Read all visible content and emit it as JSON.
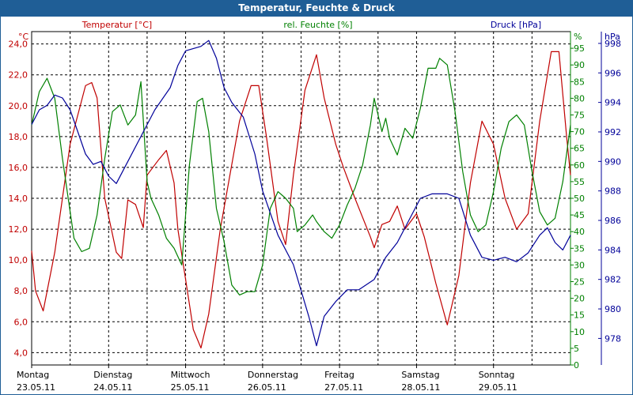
{
  "title": "Temperatur, Feuchte & Druck",
  "colors": {
    "temperature": "#c00000",
    "humidity": "#008000",
    "pressure": "#000099",
    "title_bg": "#1f5e96",
    "grid": "#000000"
  },
  "chart_data": {
    "type": "line",
    "title": "Temperatur, Feuchte & Druck",
    "x_range": [
      0,
      7
    ],
    "x_ticks": [
      {
        "day": "Montag",
        "date": "23.05.11"
      },
      {
        "day": "Dienstag",
        "date": "24.05.11"
      },
      {
        "day": "Mittwoch",
        "date": "25.05.11"
      },
      {
        "day": "Donnerstag",
        "date": "26.05.11"
      },
      {
        "day": "Freitag",
        "date": "27.05.11"
      },
      {
        "day": "Samstag",
        "date": "28.05.11"
      },
      {
        "day": "Sonntag",
        "date": "29.05.11"
      }
    ],
    "axes": {
      "temperature": {
        "label": "Temperatur [°C]",
        "unit": "°C",
        "range": [
          3.2,
          24.8
        ],
        "ticks": [
          "4,0",
          "6,0",
          "8,0",
          "10,0",
          "12,0",
          "14,0",
          "16,0",
          "18,0",
          "20,0",
          "22,0",
          "24,0"
        ]
      },
      "humidity": {
        "label": "rel. Feuchte [%]",
        "unit": "%",
        "range": [
          0,
          100
        ],
        "ticks": [
          "0",
          "5",
          "10",
          "15",
          "20",
          "25",
          "30",
          "35",
          "40",
          "45",
          "50",
          "55",
          "60",
          "65",
          "70",
          "75",
          "80",
          "85",
          "90",
          "95"
        ]
      },
      "pressure": {
        "label": "Druck [hPa]",
        "unit": "hPa",
        "range": [
          976.2,
          998.8
        ],
        "ticks": [
          "978",
          "980",
          "982",
          "984",
          "986",
          "988",
          "990",
          "992",
          "994",
          "996",
          "998"
        ]
      }
    },
    "series": [
      {
        "name": "Temperatur",
        "axis": "temperature",
        "points": [
          [
            0,
            10.6
          ],
          [
            0.05,
            8.0
          ],
          [
            0.15,
            6.7
          ],
          [
            0.3,
            10.5
          ],
          [
            0.5,
            17.5
          ],
          [
            0.7,
            21.3
          ],
          [
            0.78,
            21.5
          ],
          [
            0.85,
            20.5
          ],
          [
            0.95,
            14.0
          ],
          [
            1.1,
            10.5
          ],
          [
            1.17,
            10.1
          ],
          [
            1.25,
            13.9
          ],
          [
            1.35,
            13.6
          ],
          [
            1.45,
            12.1
          ],
          [
            1.5,
            15.5
          ],
          [
            1.65,
            16.5
          ],
          [
            1.75,
            17.1
          ],
          [
            1.85,
            15.0
          ],
          [
            1.9,
            12.0
          ],
          [
            2.1,
            5.5
          ],
          [
            2.2,
            4.3
          ],
          [
            2.3,
            6.5
          ],
          [
            2.45,
            12.0
          ],
          [
            2.7,
            19.0
          ],
          [
            2.85,
            21.3
          ],
          [
            2.95,
            21.3
          ],
          [
            3.05,
            18.0
          ],
          [
            3.2,
            12.5
          ],
          [
            3.3,
            11.0
          ],
          [
            3.4,
            15.5
          ],
          [
            3.55,
            21.0
          ],
          [
            3.7,
            23.3
          ],
          [
            3.8,
            20.5
          ],
          [
            3.95,
            17.5
          ],
          [
            4.05,
            16.0
          ],
          [
            4.2,
            14.0
          ],
          [
            4.4,
            11.5
          ],
          [
            4.45,
            10.8
          ],
          [
            4.55,
            12.3
          ],
          [
            4.65,
            12.5
          ],
          [
            4.75,
            13.5
          ],
          [
            4.85,
            12.0
          ],
          [
            5.0,
            13.0
          ],
          [
            5.1,
            11.5
          ],
          [
            5.25,
            8.5
          ],
          [
            5.4,
            5.8
          ],
          [
            5.55,
            9.0
          ],
          [
            5.7,
            15.0
          ],
          [
            5.85,
            19.0
          ],
          [
            6.0,
            17.5
          ],
          [
            6.15,
            14.0
          ],
          [
            6.3,
            12.0
          ],
          [
            6.45,
            13.0
          ],
          [
            6.6,
            19.0
          ],
          [
            6.75,
            23.5
          ],
          [
            6.85,
            23.5
          ],
          [
            6.95,
            18.0
          ],
          [
            7.0,
            15.5
          ]
        ]
      },
      {
        "name": "rel. Feuchte",
        "axis": "humidity",
        "points": [
          [
            0,
            72
          ],
          [
            0.1,
            82
          ],
          [
            0.2,
            86
          ],
          [
            0.3,
            80
          ],
          [
            0.4,
            62
          ],
          [
            0.55,
            38
          ],
          [
            0.65,
            34
          ],
          [
            0.75,
            35
          ],
          [
            0.85,
            45
          ],
          [
            0.95,
            62
          ],
          [
            1.05,
            76
          ],
          [
            1.15,
            78
          ],
          [
            1.25,
            72
          ],
          [
            1.35,
            75
          ],
          [
            1.42,
            85
          ],
          [
            1.5,
            55
          ],
          [
            1.55,
            50
          ],
          [
            1.65,
            45
          ],
          [
            1.75,
            38
          ],
          [
            1.85,
            35
          ],
          [
            1.95,
            30
          ],
          [
            2.05,
            60
          ],
          [
            2.15,
            79
          ],
          [
            2.22,
            80
          ],
          [
            2.3,
            70
          ],
          [
            2.4,
            47
          ],
          [
            2.5,
            37
          ],
          [
            2.6,
            24
          ],
          [
            2.7,
            21
          ],
          [
            2.8,
            22
          ],
          [
            2.9,
            22
          ],
          [
            3.0,
            30
          ],
          [
            3.1,
            47
          ],
          [
            3.2,
            52
          ],
          [
            3.3,
            50
          ],
          [
            3.4,
            47
          ],
          [
            3.45,
            40
          ],
          [
            3.55,
            42
          ],
          [
            3.65,
            45
          ],
          [
            3.7,
            43
          ],
          [
            3.8,
            40
          ],
          [
            3.9,
            38
          ],
          [
            4.0,
            42
          ],
          [
            4.1,
            48
          ],
          [
            4.2,
            53
          ],
          [
            4.3,
            60
          ],
          [
            4.4,
            72
          ],
          [
            4.45,
            80
          ],
          [
            4.5,
            75
          ],
          [
            4.55,
            70
          ],
          [
            4.6,
            74
          ],
          [
            4.65,
            68
          ],
          [
            4.75,
            63
          ],
          [
            4.85,
            71
          ],
          [
            4.95,
            68
          ],
          [
            5.05,
            77
          ],
          [
            5.15,
            89
          ],
          [
            5.25,
            89
          ],
          [
            5.3,
            92
          ],
          [
            5.4,
            90
          ],
          [
            5.5,
            76
          ],
          [
            5.6,
            58
          ],
          [
            5.7,
            45
          ],
          [
            5.8,
            40
          ],
          [
            5.9,
            42
          ],
          [
            6.0,
            52
          ],
          [
            6.1,
            65
          ],
          [
            6.2,
            73
          ],
          [
            6.3,
            75
          ],
          [
            6.4,
            72
          ],
          [
            6.5,
            58
          ],
          [
            6.6,
            46
          ],
          [
            6.7,
            42
          ],
          [
            6.8,
            44
          ],
          [
            6.9,
            55
          ],
          [
            7.0,
            72
          ]
        ]
      },
      {
        "name": "Druck",
        "axis": "pressure",
        "points": [
          [
            0,
            992.5
          ],
          [
            0.1,
            993.5
          ],
          [
            0.2,
            993.8
          ],
          [
            0.3,
            994.5
          ],
          [
            0.4,
            994.3
          ],
          [
            0.5,
            993.5
          ],
          [
            0.6,
            992.0
          ],
          [
            0.7,
            990.5
          ],
          [
            0.8,
            989.8
          ],
          [
            0.9,
            990.0
          ],
          [
            1.0,
            989.0
          ],
          [
            1.1,
            988.5
          ],
          [
            1.25,
            990.0
          ],
          [
            1.45,
            992.0
          ],
          [
            1.6,
            993.5
          ],
          [
            1.8,
            995.0
          ],
          [
            1.9,
            996.5
          ],
          [
            2.0,
            997.5
          ],
          [
            2.2,
            997.8
          ],
          [
            2.3,
            998.2
          ],
          [
            2.4,
            997.0
          ],
          [
            2.5,
            995.0
          ],
          [
            2.6,
            994.0
          ],
          [
            2.75,
            993.0
          ],
          [
            2.9,
            990.5
          ],
          [
            3.0,
            988.0
          ],
          [
            3.2,
            985.0
          ],
          [
            3.4,
            983.0
          ],
          [
            3.6,
            979.5
          ],
          [
            3.7,
            977.5
          ],
          [
            3.8,
            979.5
          ],
          [
            3.95,
            980.5
          ],
          [
            4.1,
            981.3
          ],
          [
            4.25,
            981.3
          ],
          [
            4.45,
            982.0
          ],
          [
            4.6,
            983.5
          ],
          [
            4.75,
            984.5
          ],
          [
            4.9,
            986.0
          ],
          [
            5.05,
            987.5
          ],
          [
            5.2,
            987.8
          ],
          [
            5.4,
            987.8
          ],
          [
            5.55,
            987.5
          ],
          [
            5.7,
            985.0
          ],
          [
            5.85,
            983.5
          ],
          [
            6.0,
            983.3
          ],
          [
            6.15,
            983.5
          ],
          [
            6.3,
            983.2
          ],
          [
            6.45,
            983.8
          ],
          [
            6.6,
            985.0
          ],
          [
            6.7,
            985.5
          ],
          [
            6.8,
            984.5
          ],
          [
            6.9,
            984.0
          ],
          [
            7.0,
            985.0
          ]
        ]
      }
    ]
  }
}
